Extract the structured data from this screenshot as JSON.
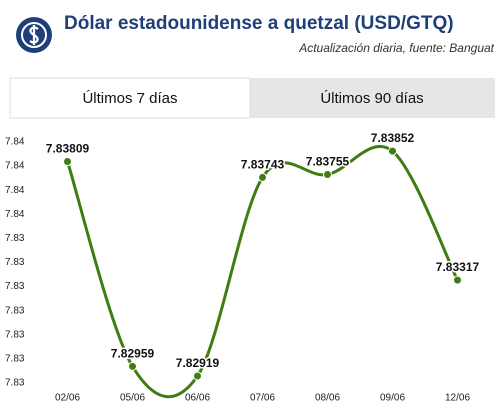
{
  "header": {
    "title": "Dólar estadounidense a quetzal (USD/GTQ)",
    "subtitle": "Actualización diaria, fuente: Banguat"
  },
  "tabs": [
    "Últimos 7 días",
    "Últimos 90 días"
  ],
  "chart_data": {
    "type": "line",
    "categories": [
      "02/06",
      "05/06",
      "06/06",
      "07/06",
      "08/06",
      "09/06",
      "12/06"
    ],
    "values": [
      7.83809,
      7.82959,
      7.82919,
      7.83743,
      7.83755,
      7.83852,
      7.83317
    ],
    "color": "#3f7d12",
    "ylim": [
      7.8289,
      7.8389
    ],
    "yticks": [
      {
        "value": 7.8289,
        "label": "7.83"
      },
      {
        "value": 7.8299,
        "label": "7.83"
      },
      {
        "value": 7.8309,
        "label": "7.83"
      },
      {
        "value": 7.8319,
        "label": "7.83"
      },
      {
        "value": 7.8329,
        "label": "7.83"
      },
      {
        "value": 7.8339,
        "label": "7.83"
      },
      {
        "value": 7.8349,
        "label": "7.83"
      },
      {
        "value": 7.8359,
        "label": "7.84"
      },
      {
        "value": 7.8369,
        "label": "7.84"
      },
      {
        "value": 7.8379,
        "label": "7.84"
      },
      {
        "value": 7.8389,
        "label": "7.84"
      }
    ],
    "grid": false
  }
}
